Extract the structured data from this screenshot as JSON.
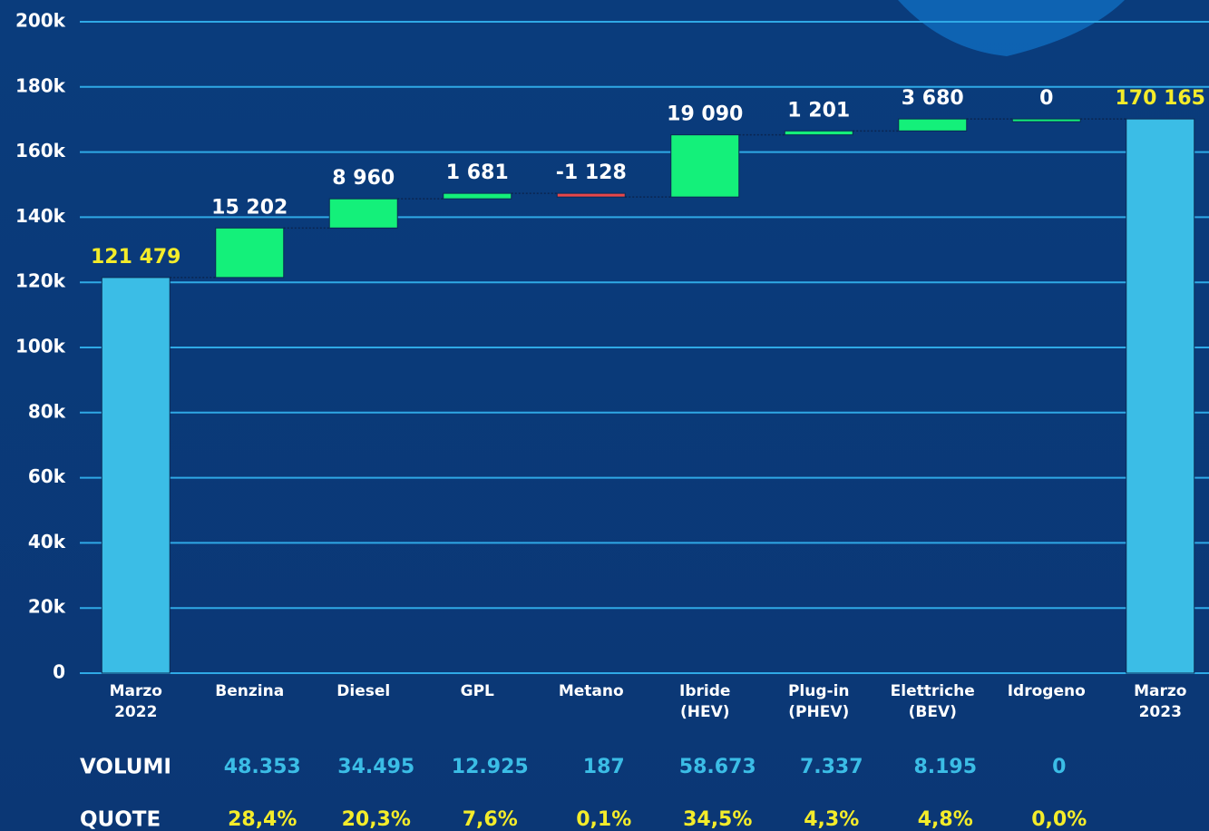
{
  "chart_data": {
    "type": "waterfall",
    "categories": [
      "Marzo 2022",
      "Benzina",
      "Diesel",
      "GPL",
      "Metano",
      "Ibride (HEV)",
      "Plug-in (PHEV)",
      "Elettriche (BEV)",
      "Idrogeno",
      "Marzo 2023"
    ],
    "values": [
      121479,
      15202,
      8960,
      1681,
      -1128,
      19090,
      1201,
      3680,
      0,
      170165
    ],
    "value_labels": [
      "121 479",
      "15 202",
      "8 960",
      "1 681",
      "-1 128",
      "19 090",
      "1 201",
      "3 680",
      "0",
      "170 165"
    ],
    "is_total": [
      true,
      false,
      false,
      false,
      false,
      false,
      false,
      false,
      false,
      true
    ],
    "colors": {
      "total": "#3bbde6",
      "increase": "#14f07a",
      "decrease": "#e8474a",
      "total_label": "#f4ec2a",
      "delta_label": "#ffffff"
    },
    "ylim": [
      0,
      200000
    ],
    "yticks": [
      {
        "value": 0,
        "label": "0"
      },
      {
        "value": 20000,
        "label": "20k"
      },
      {
        "value": 40000,
        "label": "40k"
      },
      {
        "value": 60000,
        "label": "60k"
      },
      {
        "value": 80000,
        "label": "80k"
      },
      {
        "value": 100000,
        "label": "100k"
      },
      {
        "value": 120000,
        "label": "120k"
      },
      {
        "value": 140000,
        "label": "140k"
      },
      {
        "value": 160000,
        "label": "160k"
      },
      {
        "value": 180000,
        "label": "180k"
      },
      {
        "value": 200000,
        "label": "200k"
      }
    ],
    "grid": true,
    "table": {
      "rows": [
        {
          "label": "VOLUMI",
          "cells": [
            "48.353",
            "34.495",
            "12.925",
            "187",
            "58.673",
            "7.337",
            "8.195",
            "0"
          ]
        },
        {
          "label": "QUOTE",
          "cells": [
            "28,4%",
            "20,3%",
            "7,6%",
            "0,1%",
            "34,5%",
            "4,3%",
            "4,8%",
            "0,0%"
          ]
        }
      ]
    }
  }
}
